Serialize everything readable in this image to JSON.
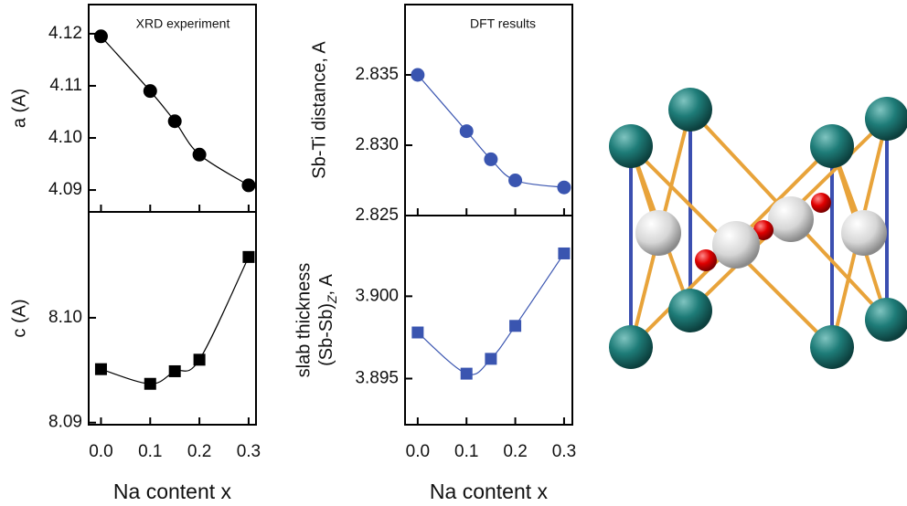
{
  "chart_data": [
    {
      "type": "scatter-line",
      "annotation": "XRD experiment",
      "ylabel": "a (A)",
      "x": [
        0,
        0.1,
        0.15,
        0.2,
        0.3
      ],
      "values": [
        4.1195,
        4.109,
        4.1032,
        4.0968,
        4.0909
      ],
      "color": "#000000",
      "marker": "circle",
      "xlim": [
        -0.025,
        0.315
      ],
      "xticks": [
        0,
        0.1,
        0.2,
        0.3
      ],
      "ylim": [
        4.0858,
        4.1256
      ],
      "yticks": [
        4.09,
        {
          "value": 4.1,
          "label": "4.10"
        },
        4.11,
        4.12
      ]
    },
    {
      "type": "scatter-line",
      "ylabel": "c (A)",
      "xlabel": "Na content x",
      "x": [
        0,
        0.1,
        0.15,
        0.2,
        0.3
      ],
      "values": [
        8.0951,
        8.0937,
        8.0949,
        8.096,
        8.1058
      ],
      "color": "#000000",
      "marker": "square",
      "xlim": [
        -0.025,
        0.315
      ],
      "xticks": [
        {
          "value": 0,
          "label": "0.0"
        },
        0.1,
        0.2,
        0.3
      ],
      "ylim": [
        8.0898,
        8.1101
      ],
      "yticks": [
        8.09,
        {
          "value": 8.1,
          "label": "8.10"
        }
      ]
    },
    {
      "type": "scatter-line",
      "annotation": "DFT results",
      "ylabel": "Sb-Ti distance, A",
      "x": [
        0,
        0.1,
        0.15,
        0.2,
        0.3
      ],
      "values": [
        2.835,
        2.831,
        2.829,
        2.8275,
        2.827
      ],
      "color": "#3a55b0",
      "marker": "circle",
      "xlim": [
        -0.026,
        0.317
      ],
      "xticks": [
        0,
        0.1,
        0.2,
        0.3
      ],
      "ylim": [
        2.825,
        2.84
      ],
      "yticks": [
        2.825,
        {
          "value": 2.83,
          "label": "2.830"
        },
        2.835
      ]
    },
    {
      "type": "scatter-line",
      "ylabel": [
        "slab thickness",
        "(Sb-Sb)",
        "Z",
        ", A"
      ],
      "xlabel": "Na content x",
      "x": [
        0,
        0.1,
        0.15,
        0.2,
        0.3
      ],
      "values": [
        3.8978,
        3.8953,
        3.8962,
        3.8982,
        3.9026
      ],
      "color": "#3a55b0",
      "marker": "square",
      "xlim": [
        -0.026,
        0.317
      ],
      "xticks": [
        {
          "value": 0,
          "label": "0.0"
        },
        0.1,
        0.2,
        0.3
      ],
      "ylim": [
        3.8922,
        3.9049
      ],
      "yticks": [
        3.895,
        {
          "value": 3.9,
          "label": "3.900"
        }
      ]
    }
  ]
}
